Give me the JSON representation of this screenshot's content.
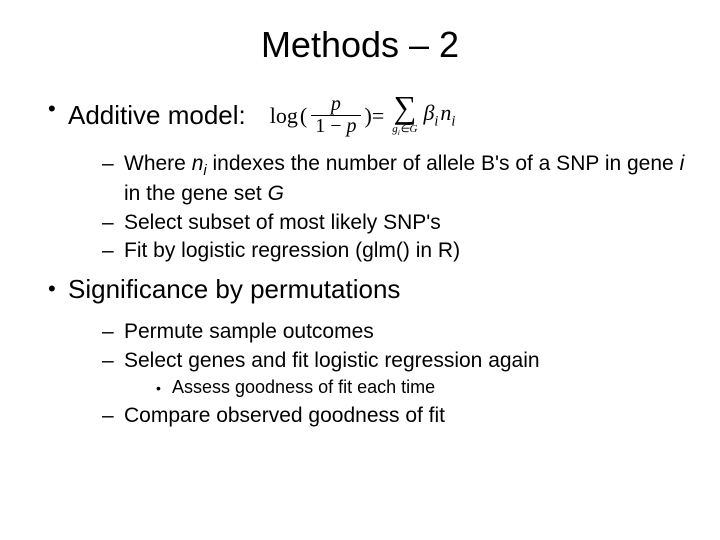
{
  "title": "Methods – 2",
  "bullets": {
    "b1": {
      "label": "Additive model:",
      "formula": {
        "fn": "log",
        "lhs_num": "p",
        "lhs_den_prefix": "1 − ",
        "lhs_den_var": "p",
        "eq": " = ",
        "sigma_sub_var": "g",
        "sigma_sub_idx": "i",
        "sigma_sub_rel": "∈",
        "sigma_sub_set": "G",
        "beta": "β",
        "beta_sub": "i",
        "n": "n",
        "n_sub": "i"
      },
      "sub": {
        "s1_a": "Where ",
        "s1_var": "n",
        "s1_varsub": "i",
        "s1_b": " indexes the number of allele B's of a SNP in gene ",
        "s1_c": "i",
        "s1_d": " in the gene set ",
        "s1_e": "G",
        "s2": "Select subset of most likely SNP's",
        "s3": "Fit by logistic regression (glm() in R)"
      }
    },
    "b2": {
      "label": "Significance by permutations",
      "sub": {
        "s1": "Permute sample outcomes",
        "s2": "Select genes and fit logistic regression again",
        "s2sub1": "Assess goodness of fit each time",
        "s3": "Compare observed goodness of fit"
      }
    }
  },
  "style": {
    "bg": "#ffffff",
    "fg": "#000000",
    "title_fontsize": 36,
    "lvl1_fontsize": 26,
    "lvl2_fontsize": 21,
    "lvl3_fontsize": 18,
    "formula_font": "Times New Roman"
  }
}
